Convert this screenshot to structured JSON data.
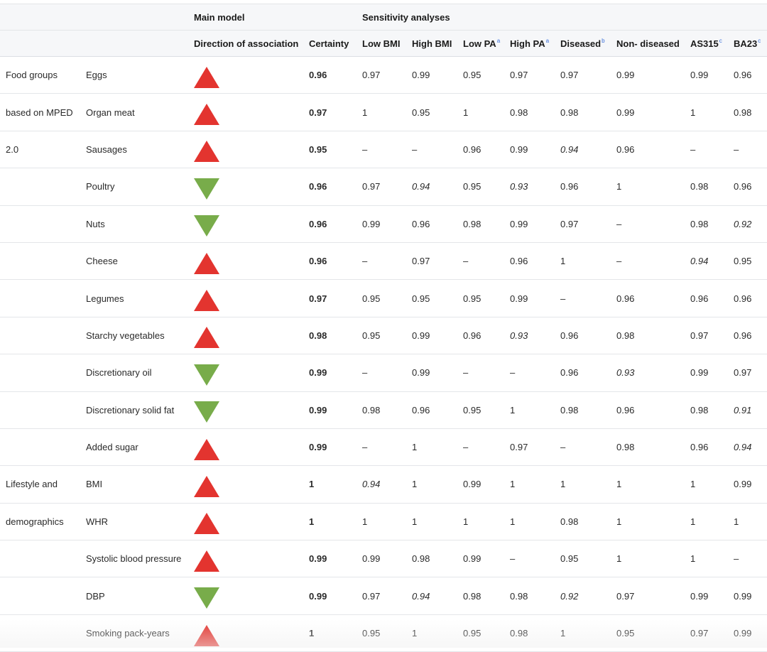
{
  "colors": {
    "up": "#e3342f",
    "down": "#78ac4a",
    "header_bg": "#f6f7f9",
    "sup": "#3a6fd8"
  },
  "header": {
    "group1": "Main model",
    "group2": "Sensitivity analyses",
    "cols": [
      {
        "label": "",
        "sup": ""
      },
      {
        "label": "",
        "sup": ""
      },
      {
        "label": "Direction of association",
        "sup": ""
      },
      {
        "label": "Certainty",
        "sup": ""
      },
      {
        "label": "Low BMI",
        "sup": ""
      },
      {
        "label": "High BMI",
        "sup": ""
      },
      {
        "label": "Low PA",
        "sup": "a"
      },
      {
        "label": "High PA",
        "sup": "a"
      },
      {
        "label": "Diseased",
        "sup": "b"
      },
      {
        "label": "Non- diseased",
        "sup": ""
      },
      {
        "label": "AS315",
        "sup": "c"
      },
      {
        "label": "BA23",
        "sup": "c"
      }
    ]
  },
  "rows": [
    {
      "group": "Food groups",
      "item": "Eggs",
      "dir": "up",
      "certainty": "0.96",
      "vals": [
        {
          "v": "0.97"
        },
        {
          "v": "0.99"
        },
        {
          "v": "0.95"
        },
        {
          "v": "0.97"
        },
        {
          "v": "0.97"
        },
        {
          "v": "0.99"
        },
        {
          "v": "0.99"
        },
        {
          "v": "0.96"
        }
      ]
    },
    {
      "group": "based on MPED",
      "item": "Organ meat",
      "dir": "up",
      "certainty": "0.97",
      "vals": [
        {
          "v": "1"
        },
        {
          "v": "0.95"
        },
        {
          "v": "1"
        },
        {
          "v": "0.98"
        },
        {
          "v": "0.98"
        },
        {
          "v": "0.99"
        },
        {
          "v": "1"
        },
        {
          "v": "0.98"
        }
      ]
    },
    {
      "group": "2.0",
      "item": "Sausages",
      "dir": "up",
      "certainty": "0.95",
      "vals": [
        {
          "v": "–"
        },
        {
          "v": "–"
        },
        {
          "v": "0.96"
        },
        {
          "v": "0.99"
        },
        {
          "v": "0.94",
          "i": true
        },
        {
          "v": "0.96"
        },
        {
          "v": "–"
        },
        {
          "v": "–"
        }
      ]
    },
    {
      "group": "",
      "item": "Poultry",
      "dir": "down",
      "certainty": "0.96",
      "vals": [
        {
          "v": "0.97"
        },
        {
          "v": "0.94",
          "i": true
        },
        {
          "v": "0.95"
        },
        {
          "v": "0.93",
          "i": true
        },
        {
          "v": "0.96"
        },
        {
          "v": "1"
        },
        {
          "v": "0.98"
        },
        {
          "v": "0.96"
        }
      ]
    },
    {
      "group": "",
      "item": "Nuts",
      "dir": "down",
      "certainty": "0.96",
      "vals": [
        {
          "v": "0.99"
        },
        {
          "v": "0.96"
        },
        {
          "v": "0.98"
        },
        {
          "v": "0.99"
        },
        {
          "v": "0.97"
        },
        {
          "v": "–"
        },
        {
          "v": "0.98"
        },
        {
          "v": "0.92",
          "i": true
        }
      ]
    },
    {
      "group": "",
      "item": "Cheese",
      "dir": "up",
      "certainty": "0.96",
      "vals": [
        {
          "v": "–"
        },
        {
          "v": "0.97"
        },
        {
          "v": "–"
        },
        {
          "v": "0.96"
        },
        {
          "v": "1"
        },
        {
          "v": "–"
        },
        {
          "v": "0.94",
          "i": true
        },
        {
          "v": "0.95"
        }
      ]
    },
    {
      "group": "",
      "item": "Legumes",
      "dir": "up",
      "certainty": "0.97",
      "vals": [
        {
          "v": "0.95"
        },
        {
          "v": "0.95"
        },
        {
          "v": "0.95"
        },
        {
          "v": "0.99"
        },
        {
          "v": "–"
        },
        {
          "v": "0.96"
        },
        {
          "v": "0.96"
        },
        {
          "v": "0.96"
        }
      ]
    },
    {
      "group": "",
      "item": "Starchy vegetables",
      "dir": "up",
      "certainty": "0.98",
      "vals": [
        {
          "v": "0.95"
        },
        {
          "v": "0.99"
        },
        {
          "v": "0.96"
        },
        {
          "v": "0.93",
          "i": true
        },
        {
          "v": "0.96"
        },
        {
          "v": "0.98"
        },
        {
          "v": "0.97"
        },
        {
          "v": "0.96"
        }
      ]
    },
    {
      "group": "",
      "item": "Discretionary oil",
      "dir": "down",
      "certainty": "0.99",
      "vals": [
        {
          "v": "–"
        },
        {
          "v": "0.99"
        },
        {
          "v": "–"
        },
        {
          "v": "–"
        },
        {
          "v": "0.96"
        },
        {
          "v": "0.93",
          "i": true
        },
        {
          "v": "0.99"
        },
        {
          "v": "0.97"
        }
      ]
    },
    {
      "group": "",
      "item": "Discretionary solid fat",
      "dir": "down",
      "certainty": "0.99",
      "vals": [
        {
          "v": "0.98"
        },
        {
          "v": "0.96"
        },
        {
          "v": "0.95"
        },
        {
          "v": "1"
        },
        {
          "v": "0.98"
        },
        {
          "v": "0.96"
        },
        {
          "v": "0.98"
        },
        {
          "v": "0.91",
          "i": true
        }
      ]
    },
    {
      "group": "",
      "item": "Added sugar",
      "dir": "up",
      "certainty": "0.99",
      "vals": [
        {
          "v": "–"
        },
        {
          "v": "1"
        },
        {
          "v": "–"
        },
        {
          "v": "0.97"
        },
        {
          "v": "–"
        },
        {
          "v": "0.98"
        },
        {
          "v": "0.96"
        },
        {
          "v": "0.94",
          "i": true
        }
      ]
    },
    {
      "group": "Lifestyle and",
      "item": "BMI",
      "dir": "up",
      "certainty": "1",
      "vals": [
        {
          "v": "0.94",
          "i": true
        },
        {
          "v": "1"
        },
        {
          "v": "0.99"
        },
        {
          "v": "1"
        },
        {
          "v": "1"
        },
        {
          "v": "1"
        },
        {
          "v": "1"
        },
        {
          "v": "0.99"
        }
      ]
    },
    {
      "group": "demographics",
      "item": "WHR",
      "dir": "up",
      "certainty": "1",
      "vals": [
        {
          "v": "1"
        },
        {
          "v": "1"
        },
        {
          "v": "1"
        },
        {
          "v": "1"
        },
        {
          "v": "0.98"
        },
        {
          "v": "1"
        },
        {
          "v": "1"
        },
        {
          "v": "1"
        }
      ]
    },
    {
      "group": "",
      "item": "Systolic blood pressure",
      "dir": "up",
      "certainty": "0.99",
      "vals": [
        {
          "v": "0.99"
        },
        {
          "v": "0.98"
        },
        {
          "v": "0.99"
        },
        {
          "v": "–"
        },
        {
          "v": "0.95"
        },
        {
          "v": "1"
        },
        {
          "v": "1"
        },
        {
          "v": "–"
        }
      ]
    },
    {
      "group": "",
      "item": "DBP",
      "dir": "down",
      "certainty": "0.99",
      "vals": [
        {
          "v": "0.97"
        },
        {
          "v": "0.94",
          "i": true
        },
        {
          "v": "0.98"
        },
        {
          "v": "0.98"
        },
        {
          "v": "0.92",
          "i": true
        },
        {
          "v": "0.97"
        },
        {
          "v": "0.99"
        },
        {
          "v": "0.99"
        }
      ]
    },
    {
      "group": "",
      "item": "Smoking pack-years",
      "dir": "up",
      "certainty": "1",
      "vals": [
        {
          "v": "0.95"
        },
        {
          "v": "1"
        },
        {
          "v": "0.95"
        },
        {
          "v": "0.98"
        },
        {
          "v": "1"
        },
        {
          "v": "0.95"
        },
        {
          "v": "0.97"
        },
        {
          "v": "0.99"
        }
      ]
    }
  ]
}
